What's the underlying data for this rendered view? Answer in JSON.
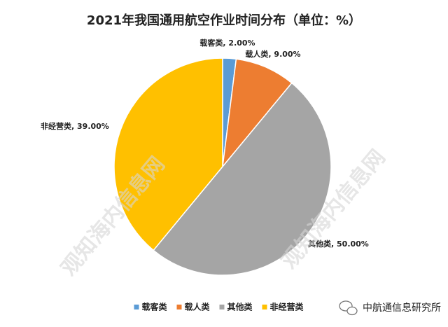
{
  "chart_data": {
    "type": "pie",
    "title": "2021年我国通用航空作业时间分布（单位：%）",
    "categories": [
      "载客类",
      "载人类",
      "其他类",
      "非经营类"
    ],
    "values": [
      2,
      9,
      50,
      39
    ],
    "value_labels": [
      "载客类, 2.00%",
      "载人类, 9.00%",
      "其他类, 50.00%",
      "非经营类, 39.00%"
    ],
    "colors": [
      "#5b9bd5",
      "#ed7d31",
      "#a5a5a5",
      "#ffc000"
    ],
    "legend": "bottom"
  },
  "watermark": "观知海内信息网",
  "footer": "中航通信息研究所"
}
